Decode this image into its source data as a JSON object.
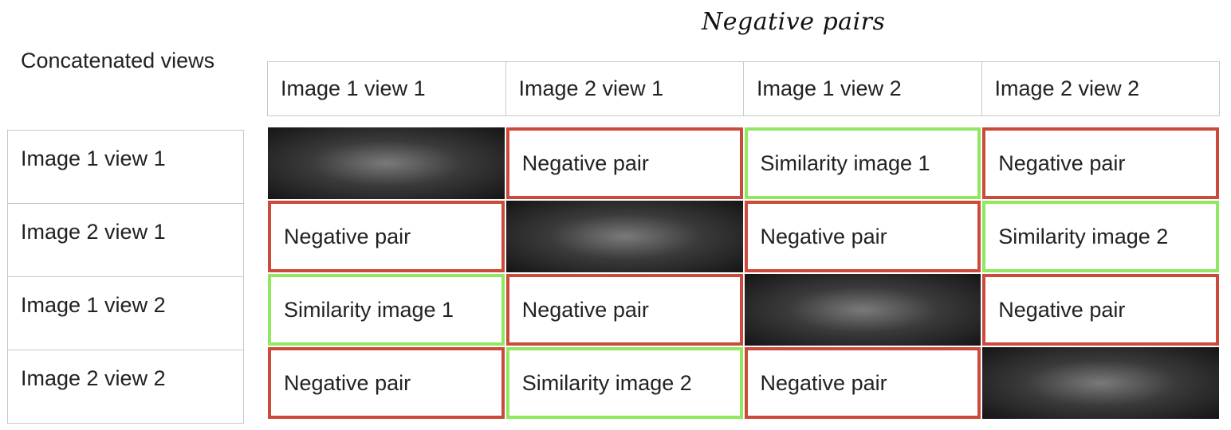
{
  "title": "Negative pairs",
  "corner_label": "Concatenated views",
  "columns": [
    "Image 1 view 1",
    "Image 2 view 1",
    "Image 1 view 2",
    "Image 2 view 2"
  ],
  "rows": [
    "Image 1 view 1",
    "Image 2 view 1",
    "Image 1 view 2",
    "Image 2 view 2"
  ],
  "cells": [
    [
      "",
      "Negative pair",
      "Similarity image 1",
      "Negative pair"
    ],
    [
      "Negative pair",
      "",
      "Negative pair",
      "Similarity image 2"
    ],
    [
      "Similarity image 1",
      "Negative pair",
      "",
      "Negative pair"
    ],
    [
      "Negative pair",
      "Similarity image 2",
      "Negative pair",
      ""
    ]
  ],
  "cell_types": [
    [
      "self",
      "negative",
      "similarity",
      "negative"
    ],
    [
      "negative",
      "self",
      "negative",
      "similarity"
    ],
    [
      "similarity",
      "negative",
      "self",
      "negative"
    ],
    [
      "negative",
      "similarity",
      "negative",
      "self"
    ]
  ],
  "colors": {
    "negative_border": "#cc4a3c",
    "similarity_border": "#90e860",
    "self_fill": "#1a1a1a"
  }
}
